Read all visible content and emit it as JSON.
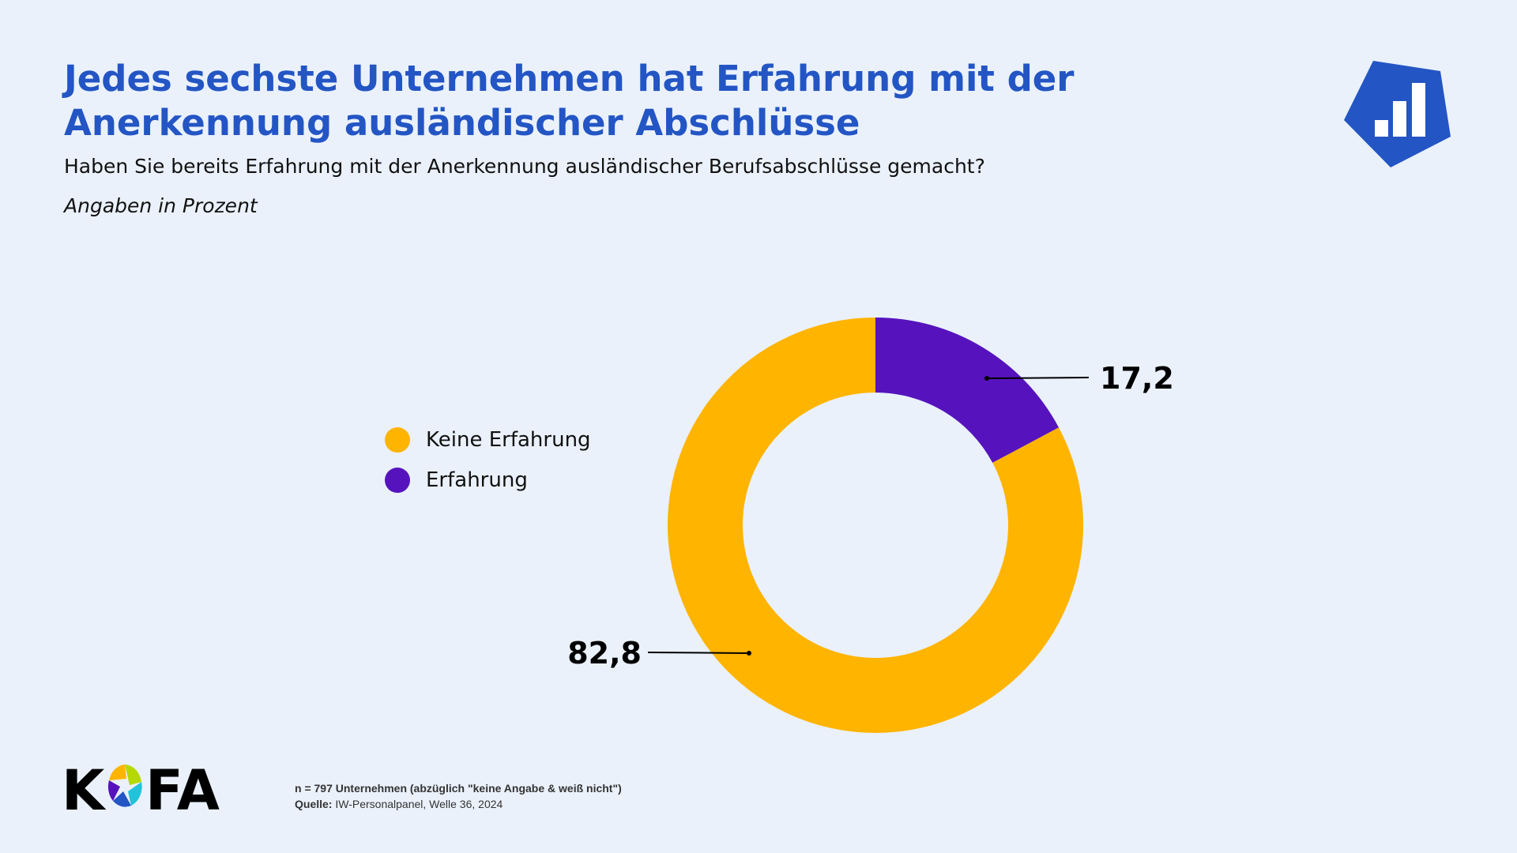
{
  "header": {
    "title": "Jedes sechste Unternehmen hat Erfahrung mit der Anerkennung ausländischer Abschlüsse",
    "subtitle": "Haben Sie bereits Erfahrung mit der Anerkennung ausländischer Berufsabschlüsse gemacht?",
    "unit_note": "Angaben in Prozent"
  },
  "chart_data": {
    "type": "pie",
    "donut": true,
    "title": "Jedes sechste Unternehmen hat Erfahrung mit der Anerkennung ausländischer Abschlüsse",
    "categories": [
      "Keine Erfahrung",
      "Erfahrung"
    ],
    "values": [
      82.8,
      17.2
    ],
    "labels": [
      "82,8",
      "17,2"
    ],
    "colors": [
      "#FFB400",
      "#5613BD"
    ],
    "legend_placement": "left"
  },
  "footer": {
    "n_note": "n = 797 Unternehmen  (abzüglich \"keine Angabe & weiß nicht\")",
    "source_label": "Quelle:",
    "source_text": " IW-Personalpanel, Welle 36, 2024",
    "logo_text": "KOFA"
  },
  "colors": {
    "background": "#EAF1FB",
    "accent": "#2355C4"
  },
  "icons": {
    "top_right": "bar-chart-badge-icon"
  }
}
